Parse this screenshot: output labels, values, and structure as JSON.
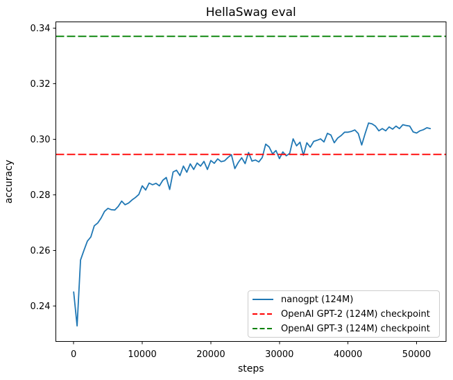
{
  "chart_data": {
    "type": "line",
    "title": "HellaSwag eval",
    "xlabel": "steps",
    "ylabel": "accuracy",
    "xlim": [
      -2600,
      54300
    ],
    "ylim": [
      0.2272,
      0.3422
    ],
    "xticks": [
      0,
      10000,
      20000,
      30000,
      40000,
      50000
    ],
    "xtick_labels": [
      "0",
      "10000",
      "20000",
      "30000",
      "40000",
      "50000"
    ],
    "yticks": [
      0.24,
      0.26,
      0.28,
      0.3,
      0.32,
      0.34
    ],
    "ytick_labels": [
      "0.24",
      "0.26",
      "0.28",
      "0.30",
      "0.32",
      "0.34"
    ],
    "grid": false,
    "legend_position": "lower right",
    "series": [
      {
        "name": "nanogpt (124M)",
        "kind": "line",
        "color": "#1f77b4",
        "linestyle": "solid",
        "x": [
          0,
          500,
          1000,
          1500,
          2000,
          2500,
          3000,
          3500,
          4000,
          4500,
          5000,
          5500,
          6000,
          6500,
          7000,
          7500,
          8000,
          8500,
          9000,
          9500,
          10000,
          10500,
          11000,
          11500,
          12000,
          12500,
          13000,
          13500,
          14000,
          14500,
          15000,
          15500,
          16000,
          16500,
          17000,
          17500,
          18000,
          18500,
          19000,
          19500,
          20000,
          20500,
          21000,
          21500,
          22000,
          22500,
          23000,
          23500,
          24000,
          24500,
          25000,
          25500,
          26000,
          26500,
          27000,
          27500,
          28000,
          28500,
          29000,
          29500,
          30000,
          30500,
          31000,
          31500,
          32000,
          32500,
          33000,
          33500,
          34000,
          34500,
          35000,
          35500,
          36000,
          36500,
          37000,
          37500,
          38000,
          38500,
          39000,
          39500,
          40000,
          40500,
          41000,
          41500,
          42000,
          42500,
          43000,
          43500,
          44000,
          44500,
          45000,
          45500,
          46000,
          46500,
          47000,
          47500,
          48000,
          48500,
          49000,
          49500,
          50000,
          50500,
          51000,
          51500,
          52000
        ],
        "y": [
          0.245,
          0.2328,
          0.2565,
          0.26,
          0.2633,
          0.2648,
          0.2688,
          0.2698,
          0.2716,
          0.274,
          0.2751,
          0.2746,
          0.2745,
          0.2758,
          0.2777,
          0.2764,
          0.277,
          0.2781,
          0.279,
          0.2801,
          0.2832,
          0.2817,
          0.2842,
          0.2836,
          0.2841,
          0.2832,
          0.2852,
          0.2862,
          0.2819,
          0.2882,
          0.2888,
          0.2869,
          0.2903,
          0.2881,
          0.2911,
          0.2891,
          0.2914,
          0.2903,
          0.292,
          0.2891,
          0.2923,
          0.2913,
          0.2929,
          0.2919,
          0.2922,
          0.2934,
          0.2944,
          0.2894,
          0.2916,
          0.2933,
          0.2912,
          0.2952,
          0.2921,
          0.2925,
          0.2918,
          0.2934,
          0.2982,
          0.2972,
          0.2947,
          0.2959,
          0.293,
          0.2954,
          0.294,
          0.2949,
          0.3001,
          0.2976,
          0.2989,
          0.2942,
          0.2987,
          0.2971,
          0.2992,
          0.2996,
          0.3001,
          0.299,
          0.3021,
          0.3015,
          0.2987,
          0.3004,
          0.3013,
          0.3025,
          0.3025,
          0.3028,
          0.3033,
          0.302,
          0.2979,
          0.302,
          0.3058,
          0.3055,
          0.3047,
          0.303,
          0.3038,
          0.303,
          0.3044,
          0.3036,
          0.3047,
          0.3038,
          0.3052,
          0.3049,
          0.3047,
          0.3026,
          0.3022,
          0.303,
          0.3034,
          0.3041,
          0.3038
        ]
      },
      {
        "name": "OpenAI GPT-2 (124M) checkpoint",
        "kind": "hline",
        "color": "#ff0000",
        "linestyle": "dashed",
        "y": 0.2945
      },
      {
        "name": "OpenAI GPT-3 (124M) checkpoint",
        "kind": "hline",
        "color": "#008000",
        "linestyle": "dashed",
        "y": 0.337
      }
    ]
  }
}
